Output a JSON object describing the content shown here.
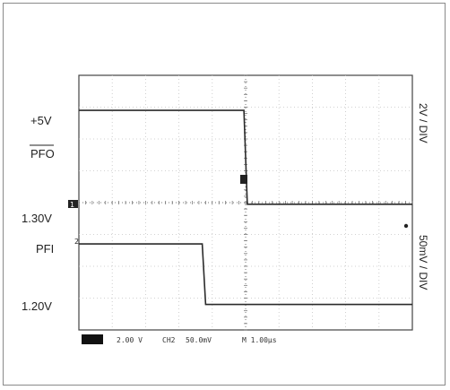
{
  "chart_data": {
    "type": "line",
    "title": "",
    "xlabel": "",
    "ylabel": "",
    "grid": true,
    "x_divisions": 10,
    "y_divisions": 8,
    "x_range": [
      -5,
      5
    ],
    "y_range": [
      -4,
      4
    ],
    "channel_markers": {
      "ch1": "1",
      "ch2": "2"
    },
    "series": [
      {
        "points": [
          [
            -5,
            2.9
          ],
          [
            -0.05,
            2.9
          ],
          [
            0.05,
            -0.05
          ],
          [
            5,
            -0.05
          ]
        ]
      },
      {
        "points": [
          [
            -5,
            -1.3
          ],
          [
            -1.3,
            -1.3
          ],
          [
            -1.2,
            -3.2
          ],
          [
            5,
            -3.2
          ]
        ]
      }
    ],
    "trace_labels": [
      {
        "text": "+5V",
        "y": 2.9
      },
      {
        "text": "PFO",
        "y": 1.5,
        "overline": true
      },
      {
        "text": "1.30V",
        "y": -0.5
      },
      {
        "text": "PFI",
        "y": -1.6
      },
      {
        "text": "1.20V",
        "y": -3.2
      }
    ],
    "scale_labels": [
      "2V / DIV",
      "50mV / DIV"
    ],
    "status_bar": {
      "ch1_scale": "2.00 V",
      "ch2": "CH2",
      "ch2_scale": "50.0mV",
      "timebase": "M 1.00μs"
    }
  }
}
